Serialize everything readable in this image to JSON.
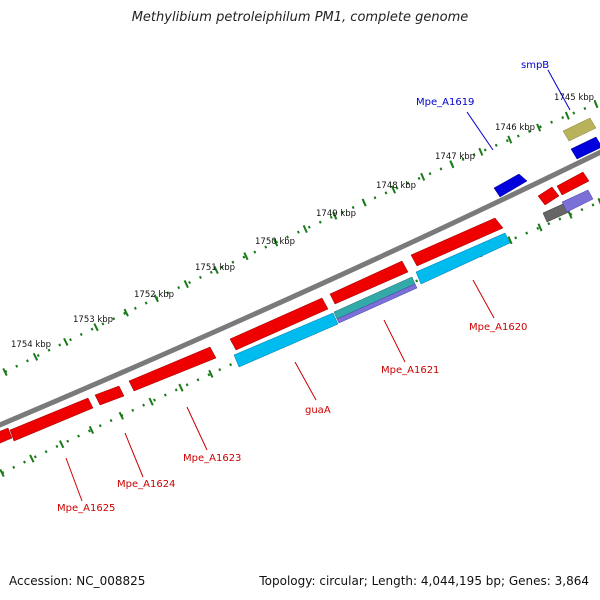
{
  "title": "Methylibium petroleiphilum PM1, complete genome",
  "footer": {
    "accession": "Accession: NC_008825",
    "summary": "Topology: circular; Length: 4,044,195 bp; Genes: 3,864"
  },
  "colors": {
    "backbone": "#7a7a7a",
    "tick": "#1a7a1a",
    "gene_red": "#ee0000",
    "gene_cyan": "#00bbee",
    "gene_blue": "#0000dd",
    "gene_khaki": "#b8b25a",
    "gene_gray": "#666666",
    "gene_lavender": "#7a70d8",
    "gene_teal": "#33aaaa",
    "label_red": "#cc0000",
    "label_blue": "#0000cc",
    "scale_label": "#111111"
  },
  "scale": {
    "unit": "kbp",
    "labels": [
      "1745 kbp",
      "1746 kbp",
      "1747 kbp",
      "1748 kbp",
      "1749 kbp",
      "1750 kbp",
      "1751 kbp",
      "1752 kbp",
      "1753 kbp",
      "1754 kbp"
    ]
  },
  "gene_labels": [
    {
      "name": "smpB",
      "color": "blue"
    },
    {
      "name": "Mpe_A1619",
      "color": "blue"
    },
    {
      "name": "Mpe_A1620",
      "color": "red"
    },
    {
      "name": "Mpe_A1621",
      "color": "red"
    },
    {
      "name": "guaA",
      "color": "red"
    },
    {
      "name": "Mpe_A1623",
      "color": "red"
    },
    {
      "name": "Mpe_A1624",
      "color": "red"
    },
    {
      "name": "Mpe_A1625",
      "color": "red"
    }
  ]
}
